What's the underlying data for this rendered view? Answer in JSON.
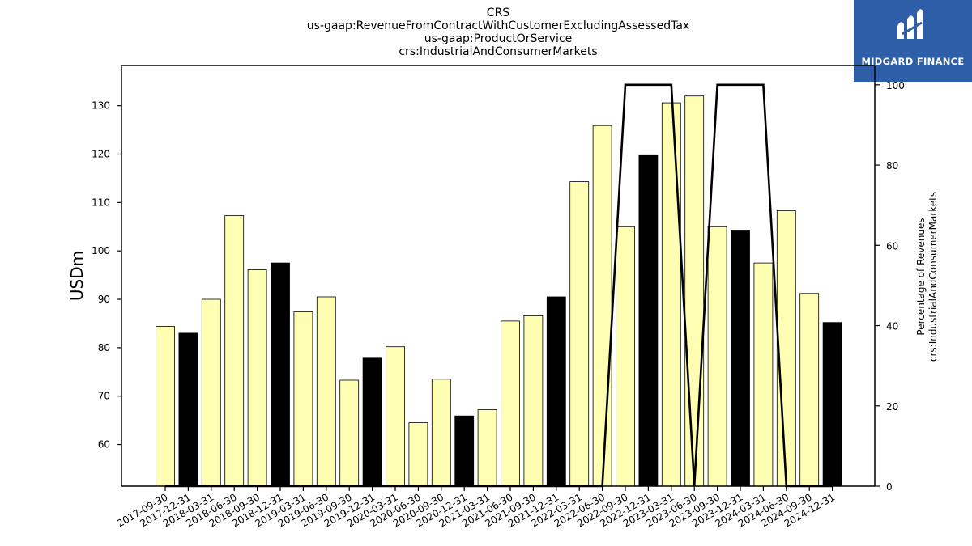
{
  "logo": {
    "text": "MIDGARD FINANCE",
    "icon": "midgard-logo-icon",
    "background": "#2f5ea8"
  },
  "chart_data": {
    "type": "bar",
    "title_lines": [
      "CRS",
      "us-gaap:RevenueFromContractWithCustomerExcludingAssessedTax",
      "us-gaap:ProductOrService",
      "crs:IndustrialAndConsumerMarkets"
    ],
    "ylabel": "USDm",
    "y2label_lines": [
      "Percentage of Revenues",
      "crs:IndustrialAndConsumerMarkets"
    ],
    "ylim": [
      51.4,
      138.3
    ],
    "y2lim": [
      0,
      104.8
    ],
    "yticks": [
      60,
      70,
      80,
      90,
      100,
      110,
      120,
      130
    ],
    "y2ticks": [
      0,
      20,
      40,
      60,
      80,
      100
    ],
    "categories": [
      "2017-09-30",
      "2017-12-31",
      "2018-03-31",
      "2018-06-30",
      "2018-09-30",
      "2018-12-31",
      "2019-03-31",
      "2019-06-30",
      "2019-09-30",
      "2019-12-31",
      "2020-03-31",
      "2020-06-30",
      "2020-09-30",
      "2020-12-31",
      "2021-03-31",
      "2021-06-30",
      "2021-09-30",
      "2021-12-31",
      "2022-03-31",
      "2022-06-30",
      "2022-09-30",
      "2022-12-31",
      "2023-03-31",
      "2023-06-30",
      "2023-09-30",
      "2023-12-31",
      "2024-03-31",
      "2024-06-30",
      "2024-09-30",
      "2024-12-31"
    ],
    "series": [
      {
        "values": [
          84.4,
          83.0,
          90.0,
          107.3,
          96.1,
          97.5,
          87.4,
          90.5,
          73.3,
          78.0,
          80.2,
          64.5,
          73.5,
          65.9,
          67.2,
          85.5,
          86.6,
          90.5,
          114.3,
          125.9,
          105.0,
          119.7,
          130.6,
          132.0,
          105.0,
          104.3,
          97.5,
          108.3,
          91.2,
          85.2
        ],
        "highlight": [
          false,
          true,
          false,
          false,
          false,
          true,
          false,
          false,
          false,
          true,
          false,
          false,
          false,
          true,
          false,
          false,
          false,
          true,
          false,
          false,
          false,
          true,
          false,
          false,
          false,
          true,
          false,
          false,
          false,
          true
        ]
      },
      {
        "axis": "right",
        "type": "line",
        "values": [
          0,
          0,
          0,
          0,
          0,
          0,
          0,
          0,
          0,
          0,
          0,
          0,
          0,
          0,
          0,
          0,
          0,
          0,
          0,
          0,
          100,
          100,
          100,
          0,
          100,
          100,
          100,
          0,
          0,
          0
        ]
      }
    ],
    "colors": {
      "bar": "#ffffb3",
      "bar_highlight": "#000000",
      "line": "#000000"
    },
    "grid": false
  }
}
